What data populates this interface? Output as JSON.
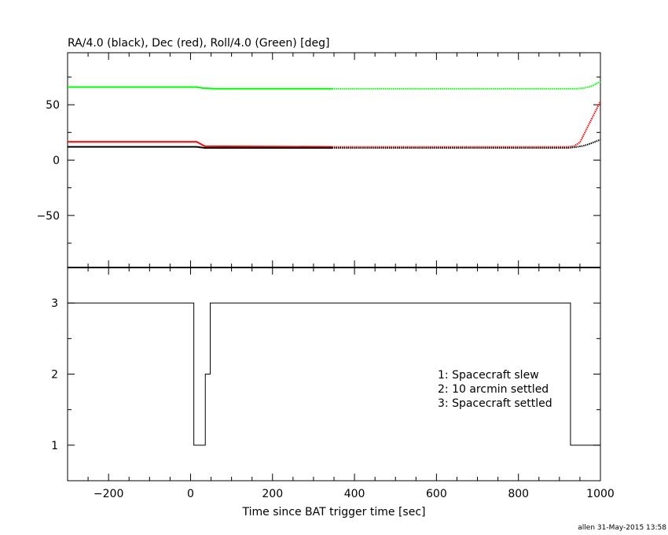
{
  "chart_data": [
    {
      "type": "line",
      "title": "RA/4.0 (black), Dec (red), Roll/4.0 (Green) [deg]",
      "xlim": [
        -300,
        1000
      ],
      "ylim": [
        -97,
        97
      ],
      "y_ticks": [
        50,
        0,
        -50
      ],
      "y_tick_labels": [
        "50",
        "0",
        "−50"
      ],
      "series": [
        {
          "color": "#00ff00",
          "x": [
            -300,
            15,
            30,
            60,
            345,
            920,
            940,
            960,
            980,
            1000
          ],
          "y": [
            66,
            66,
            65,
            64.5,
            64.5,
            64.5,
            64.5,
            65,
            67,
            71
          ],
          "dotted_after_x": 345
        },
        {
          "color": "#ff0000",
          "x": [
            -300,
            15,
            35,
            345,
            920,
            935,
            950,
            1000
          ],
          "y": [
            16.5,
            16.5,
            12.5,
            12,
            12,
            12.5,
            16,
            53
          ],
          "dotted_after_x": 345
        },
        {
          "color": "#000000",
          "x": [
            -300,
            15,
            35,
            345,
            920,
            935,
            960,
            980,
            1000
          ],
          "y": [
            12,
            12,
            11,
            11,
            11,
            11.5,
            13,
            15.5,
            18.5
          ],
          "dotted_after_x": 345
        }
      ]
    },
    {
      "type": "line",
      "step": true,
      "xlabel": "Time since BAT trigger time [sec]",
      "xlim": [
        -300,
        1000
      ],
      "ylim": [
        0.5,
        3.5
      ],
      "x_ticks": [
        -200,
        0,
        200,
        400,
        600,
        800,
        1000
      ],
      "x_tick_labels": [
        "−200",
        "0",
        "200",
        "400",
        "600",
        "800",
        "1000"
      ],
      "y_ticks": [
        3,
        2,
        1
      ],
      "y_tick_labels": [
        "3",
        "2",
        "1"
      ],
      "series": [
        {
          "color": "#000000",
          "x": [
            -300,
            8,
            8,
            36,
            36,
            48,
            48,
            927,
            927,
            1000
          ],
          "y": [
            3,
            3,
            1,
            1,
            2,
            2,
            3,
            3,
            1,
            1
          ]
        }
      ],
      "legend": [
        "1: Spacecraft slew",
        "2: 10 arcmin settled",
        "3: Spacecraft settled"
      ]
    }
  ],
  "footer": {
    "stamp": "allen 31-May-2015 13:58"
  }
}
